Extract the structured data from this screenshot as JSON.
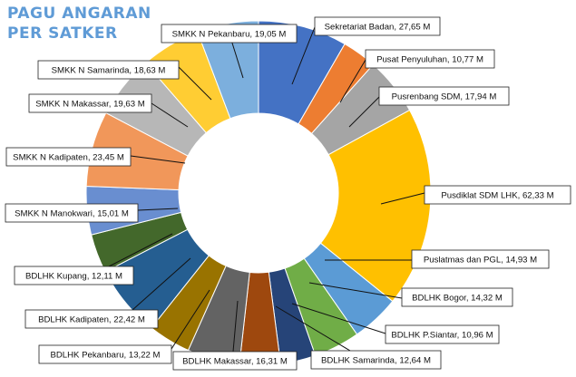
{
  "title": {
    "line1": "PAGU ANGARAN",
    "line2": "PER SATKER"
  },
  "chart_data": {
    "type": "pie",
    "variant": "doughnut",
    "title": "PAGU ANGARAN PER SATKER",
    "legend": "none",
    "slices": [
      {
        "label": "Sekretariat Badan, 27,65 M",
        "name": "Sekretariat Badan",
        "value": 27.65,
        "color": "#4472c4"
      },
      {
        "label": "Pusat Penyuluhan, 10,77 M",
        "name": "Pusat Penyuluhan",
        "value": 10.77,
        "color": "#ed7d31"
      },
      {
        "label": "Pusrenbang SDM, 17,94 M",
        "name": "Pusrenbang SDM",
        "value": 17.94,
        "color": "#a5a5a5"
      },
      {
        "label": "Pusdiklat SDM LHK, 62,33 M",
        "name": "Pusdiklat SDM LHK",
        "value": 62.33,
        "color": "#ffc000"
      },
      {
        "label": "Puslatmas dan PGL, 14,93 M",
        "name": "Puslatmas dan PGL",
        "value": 14.93,
        "color": "#5b9bd5"
      },
      {
        "label": "BDLHK Bogor, 14,32 M",
        "name": "BDLHK Bogor",
        "value": 14.32,
        "color": "#70ad47"
      },
      {
        "label": "BDLHK P.Siantar, 10,96 M",
        "name": "BDLHK P.Siantar",
        "value": 10.96,
        "color": "#264478"
      },
      {
        "label": "BDLHK Samarinda, 12,64 M",
        "name": "BDLHK Samarinda",
        "value": 12.64,
        "color": "#9e480e"
      },
      {
        "label": "BDLHK Makassar, 16,31 M",
        "name": "BDLHK Makassar",
        "value": 16.31,
        "color": "#636363"
      },
      {
        "label": "BDLHK Pekanbaru, 13,22 M",
        "name": "BDLHK Pekanbaru",
        "value": 13.22,
        "color": "#997300"
      },
      {
        "label": "BDLHK Kadipaten, 22,42 M",
        "name": "BDLHK Kadipaten",
        "value": 22.42,
        "color": "#255e91"
      },
      {
        "label": "BDLHK Kupang, 12,11 M",
        "name": "BDLHK Kupang",
        "value": 12.11,
        "color": "#43682b"
      },
      {
        "label": "SMKK N Manokwari, 15,01 M",
        "name": "SMKK N Manokwari",
        "value": 15.01,
        "color": "#698ed0"
      },
      {
        "label": "SMKK N Kadipaten, 23,45 M",
        "name": "SMKK N Kadipaten",
        "value": 23.45,
        "color": "#f1975a"
      },
      {
        "label": "SMKK N Makassar, 19,63 M",
        "name": "SMKK N Makassar",
        "value": 19.63,
        "color": "#b7b7b7"
      },
      {
        "label": "SMKK N Samarinda, 18,63 M",
        "name": "SMKK N Samarinda",
        "value": 18.63,
        "color": "#ffcd33"
      },
      {
        "label": "SMKK N Pekanbaru, 19,05 M",
        "name": "SMKK N Pekanbaru",
        "value": 19.05,
        "color": "#7cafdd"
      }
    ]
  }
}
